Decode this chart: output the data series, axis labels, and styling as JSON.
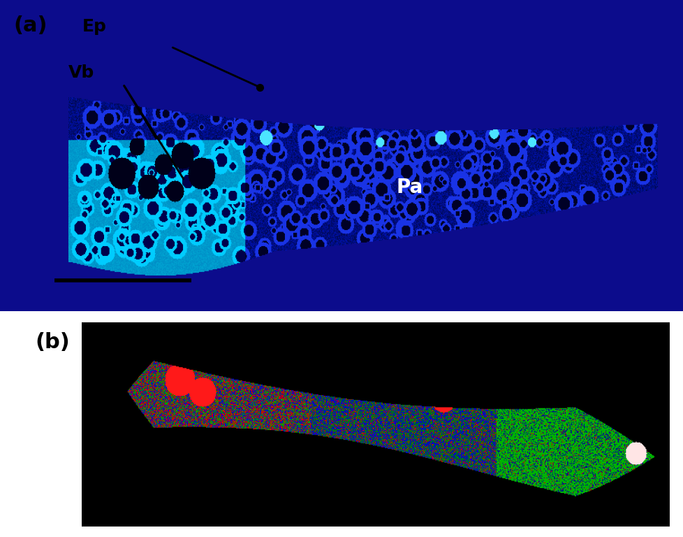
{
  "panel_a_label": "(a)",
  "panel_b_label": "(b)",
  "label_Ep": "Ep",
  "label_Vb": "Vb",
  "label_Pa": "Pa",
  "panel_a_bg": "#ffffff",
  "panel_b_bg": "#000000",
  "fig_bg": "#ffffff",
  "label_fontsize": 22,
  "annotation_fontsize": 18,
  "Pa_fontsize": 20,
  "scale_bar_color": "#000000"
}
